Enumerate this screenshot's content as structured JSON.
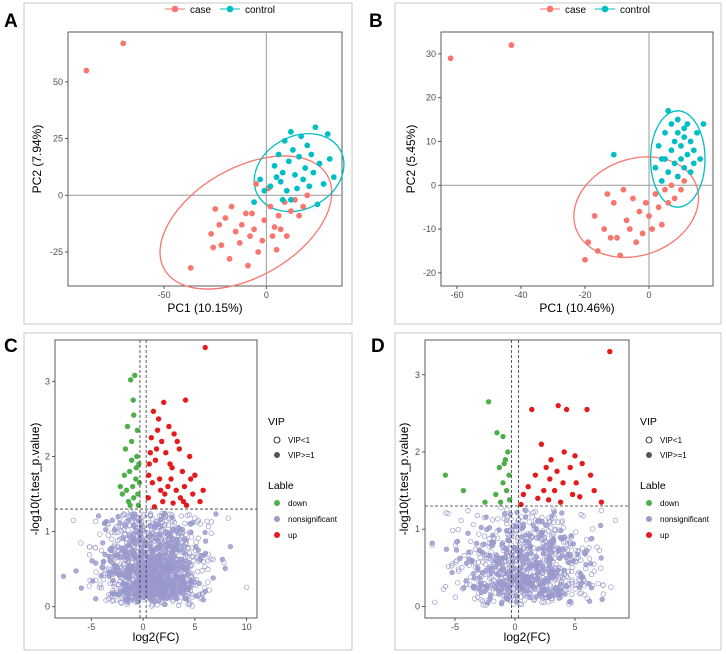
{
  "colors": {
    "case": "#F8766D",
    "control": "#00BFC4",
    "down": "#4DAF4A",
    "nonsignificant": "#9999CC",
    "up": "#E41A1C",
    "frame": "#c8c8c8",
    "grid_line": "#9a9a9a"
  },
  "chart_data": [
    {
      "panel": "A",
      "type": "scatter",
      "subtype": "pca",
      "xlabel": "PC1 (10.15%)",
      "ylabel": "PC2 (7.94%)",
      "xlim": [
        -97,
        37
      ],
      "ylim": [
        -40,
        72
      ],
      "xticks": [
        -50,
        0
      ],
      "yticks": [
        -25,
        0,
        25,
        50
      ],
      "reference_lines": {
        "x": 0,
        "y": 0
      },
      "legend": {
        "position": "top",
        "entries": [
          "case",
          "control"
        ]
      },
      "series": [
        {
          "name": "case",
          "points": [
            [
              -88,
              55
            ],
            [
              -70,
              67
            ],
            [
              -37,
              -32
            ],
            [
              -27,
              -17
            ],
            [
              -26,
              -23
            ],
            [
              -25,
              -6
            ],
            [
              -23,
              -13
            ],
            [
              -22,
              -22
            ],
            [
              -20,
              -10
            ],
            [
              -18,
              -28
            ],
            [
              -17,
              -5
            ],
            [
              -15,
              -16
            ],
            [
              -13,
              -21
            ],
            [
              -12,
              -13
            ],
            [
              -10,
              -8
            ],
            [
              -9,
              -31
            ],
            [
              -8,
              -18
            ],
            [
              -7,
              -8
            ],
            [
              -6,
              -15
            ],
            [
              -4,
              -25
            ],
            [
              -2,
              -20
            ],
            [
              -1,
              -11
            ],
            [
              2,
              -5
            ],
            [
              3,
              -18
            ],
            [
              4,
              -14
            ],
            [
              5,
              -24
            ],
            [
              6,
              -9
            ],
            [
              7,
              -15
            ],
            [
              9,
              -3
            ],
            [
              10,
              -18
            ],
            [
              12,
              -7
            ],
            [
              14,
              -2
            ],
            [
              16,
              -9
            ],
            [
              18,
              -5
            ],
            [
              20,
              0
            ],
            [
              -5,
              5
            ],
            [
              1,
              3
            ]
          ],
          "ellipse": {
            "cx": -10,
            "cy": -12,
            "rx": 46,
            "ry": 24,
            "angle_deg": 30
          }
        },
        {
          "name": "control",
          "points": [
            [
              -3,
              7
            ],
            [
              -1,
              2
            ],
            [
              2,
              4
            ],
            [
              4,
              13
            ],
            [
              5,
              8
            ],
            [
              6,
              18
            ],
            [
              7,
              6
            ],
            [
              8,
              10
            ],
            [
              9,
              24
            ],
            [
              10,
              2
            ],
            [
              11,
              15
            ],
            [
              12,
              -2
            ],
            [
              13,
              20
            ],
            [
              14,
              9
            ],
            [
              15,
              3
            ],
            [
              16,
              17
            ],
            [
              17,
              26
            ],
            [
              18,
              7
            ],
            [
              19,
              12
            ],
            [
              20,
              22
            ],
            [
              21,
              4
            ],
            [
              22,
              18
            ],
            [
              23,
              10
            ],
            [
              24,
              30
            ],
            [
              25,
              -4
            ],
            [
              26,
              14
            ],
            [
              28,
              5
            ],
            [
              30,
              27
            ],
            [
              31,
              16
            ],
            [
              33,
              8
            ],
            [
              8,
              -2
            ],
            [
              12,
              28
            ],
            [
              -6,
              -3
            ]
          ],
          "ellipse": {
            "cx": 16,
            "cy": 10,
            "rx": 23,
            "ry": 16,
            "angle_deg": 28
          }
        }
      ]
    },
    {
      "panel": "B",
      "type": "scatter",
      "subtype": "pca",
      "xlabel": "PC1 (10.46%)",
      "ylabel": "PC2 (5.45%)",
      "xlim": [
        -65,
        20
      ],
      "ylim": [
        -23,
        35
      ],
      "xticks": [
        -60,
        -40,
        -20,
        0
      ],
      "yticks": [
        -20,
        -10,
        0,
        10,
        20,
        30
      ],
      "reference_lines": {
        "x": 0,
        "y": 0
      },
      "legend": {
        "position": "top",
        "entries": [
          "case",
          "control"
        ]
      },
      "series": [
        {
          "name": "case",
          "points": [
            [
              -62,
              29
            ],
            [
              -43,
              32
            ],
            [
              -20,
              -17
            ],
            [
              -19,
              -13
            ],
            [
              -17,
              -7
            ],
            [
              -16,
              -15
            ],
            [
              -14,
              -10
            ],
            [
              -12,
              -12
            ],
            [
              -11,
              -4
            ],
            [
              -10,
              -12
            ],
            [
              -9,
              -16
            ],
            [
              -7,
              -8
            ],
            [
              -6,
              -10
            ],
            [
              -5,
              -3
            ],
            [
              -4,
              -13
            ],
            [
              -3,
              -6
            ],
            [
              -2,
              -11
            ],
            [
              -1,
              -4
            ],
            [
              0,
              -7
            ],
            [
              1,
              -10
            ],
            [
              2,
              -2
            ],
            [
              3,
              -5
            ],
            [
              4,
              -9
            ],
            [
              5,
              -1
            ],
            [
              6,
              -4
            ],
            [
              7,
              0
            ],
            [
              8,
              -3
            ],
            [
              9,
              2
            ],
            [
              10,
              -1
            ],
            [
              11,
              1
            ],
            [
              -13,
              -2
            ],
            [
              -8,
              -1
            ]
          ],
          "ellipse": {
            "cx": -4,
            "cy": -5,
            "rx": 20,
            "ry": 11,
            "angle_deg": 20
          }
        },
        {
          "name": "control",
          "points": [
            [
              -11,
              7
            ],
            [
              2,
              4
            ],
            [
              3,
              9
            ],
            [
              4,
              1
            ],
            [
              5,
              6
            ],
            [
              5,
              12
            ],
            [
              6,
              3
            ],
            [
              7,
              8
            ],
            [
              7,
              14
            ],
            [
              8,
              5
            ],
            [
              8,
              10
            ],
            [
              9,
              2
            ],
            [
              9,
              12
            ],
            [
              10,
              6
            ],
            [
              10,
              9
            ],
            [
              11,
              4
            ],
            [
              11,
              11
            ],
            [
              12,
              7
            ],
            [
              12,
              14
            ],
            [
              13,
              3
            ],
            [
              13,
              10
            ],
            [
              14,
              5
            ],
            [
              14,
              8
            ],
            [
              15,
              12
            ],
            [
              16,
              6
            ],
            [
              17,
              14
            ],
            [
              6,
              17
            ],
            [
              9,
              15
            ],
            [
              11,
              13
            ],
            [
              4,
              6
            ]
          ],
          "ellipse": {
            "cx": 9,
            "cy": 6,
            "rx": 8.5,
            "ry": 11,
            "angle_deg": 0
          }
        }
      ]
    },
    {
      "panel": "C",
      "type": "scatter",
      "subtype": "volcano",
      "xlabel": "log2(FC)",
      "ylabel": "-log10(t.test_p.value)",
      "xlim": [
        -8.5,
        11
      ],
      "ylim": [
        -0.15,
        3.55
      ],
      "xticks": [
        -5,
        0,
        5,
        10
      ],
      "yticks": [
        0,
        1,
        2,
        3
      ],
      "fc_threshold_lines": [
        -0.3,
        0.3
      ],
      "p_threshold_line": 1.3,
      "n_nonsignificant_points": 1400,
      "down_points": [
        [
          -1.2,
          3.02
        ],
        [
          -0.8,
          3.08
        ],
        [
          -1.5,
          2.4
        ],
        [
          -0.9,
          2.55
        ],
        [
          -1.1,
          2.2
        ],
        [
          -0.6,
          2.0
        ],
        [
          -1.7,
          2.1
        ],
        [
          -0.4,
          1.9
        ],
        [
          -1.3,
          1.8
        ],
        [
          -0.7,
          1.7
        ],
        [
          -1.0,
          1.6
        ],
        [
          -0.5,
          1.5
        ],
        [
          -1.6,
          1.55
        ],
        [
          -0.9,
          1.45
        ],
        [
          -1.4,
          1.4
        ],
        [
          -0.45,
          1.35
        ],
        [
          -2.0,
          1.5
        ],
        [
          -1.1,
          1.95
        ],
        [
          -0.55,
          2.35
        ],
        [
          -1.8,
          1.75
        ],
        [
          -0.35,
          1.65
        ],
        [
          -1.25,
          1.35
        ],
        [
          -0.65,
          1.85
        ],
        [
          -2.2,
          1.6
        ],
        [
          -0.95,
          2.75
        ]
      ],
      "up_points": [
        [
          6.0,
          3.45
        ],
        [
          4.1,
          2.75
        ],
        [
          2.0,
          2.72
        ],
        [
          1.0,
          2.6
        ],
        [
          1.5,
          2.5
        ],
        [
          2.5,
          2.4
        ],
        [
          3.0,
          2.3
        ],
        [
          0.8,
          2.25
        ],
        [
          1.8,
          2.2
        ],
        [
          3.5,
          2.1
        ],
        [
          2.2,
          2.05
        ],
        [
          4.5,
          2.0
        ],
        [
          1.2,
          1.95
        ],
        [
          0.6,
          1.9
        ],
        [
          2.8,
          1.85
        ],
        [
          3.8,
          1.8
        ],
        [
          5.0,
          1.75
        ],
        [
          1.6,
          1.7
        ],
        [
          0.9,
          1.65
        ],
        [
          2.4,
          1.6
        ],
        [
          3.2,
          1.55
        ],
        [
          4.8,
          1.5
        ],
        [
          0.5,
          1.45
        ],
        [
          1.9,
          1.4
        ],
        [
          2.9,
          1.38
        ],
        [
          4.2,
          1.35
        ],
        [
          5.5,
          1.4
        ],
        [
          1.1,
          1.33
        ],
        [
          3.6,
          1.45
        ],
        [
          2.6,
          1.9
        ],
        [
          1.4,
          2.35
        ],
        [
          0.7,
          2.05
        ],
        [
          4.0,
          1.6
        ],
        [
          5.8,
          1.55
        ],
        [
          2.1,
          1.5
        ],
        [
          3.3,
          2.2
        ],
        [
          0.55,
          1.75
        ],
        [
          1.7,
          1.55
        ],
        [
          2.7,
          1.7
        ],
        [
          3.9,
          1.4
        ],
        [
          4.6,
          1.7
        ],
        [
          1.3,
          2.1
        ]
      ],
      "legend": {
        "position": "right",
        "vip_title": "VIP",
        "vip_entries": [
          "VIP<1",
          "VIP>=1"
        ],
        "label_title": "Lable",
        "label_entries": [
          "down",
          "nonsignificant",
          "up"
        ]
      }
    },
    {
      "panel": "D",
      "type": "scatter",
      "subtype": "volcano",
      "xlabel": "log2(FC)",
      "ylabel": "-log10(t.test_p.value)",
      "xlim": [
        -7.5,
        9.5
      ],
      "ylim": [
        -0.15,
        3.45
      ],
      "xticks": [
        -5,
        0,
        5
      ],
      "yticks": [
        0,
        1,
        2,
        3
      ],
      "fc_threshold_lines": [
        -0.3,
        0.3
      ],
      "p_threshold_line": 1.3,
      "n_nonsignificant_points": 900,
      "down_points": [
        [
          -2.2,
          2.65
        ],
        [
          -1.5,
          2.25
        ],
        [
          -1.0,
          2.2
        ],
        [
          -0.6,
          2.0
        ],
        [
          -0.9,
          1.85
        ],
        [
          -1.3,
          1.8
        ],
        [
          -0.5,
          1.7
        ],
        [
          -1.0,
          1.6
        ],
        [
          -0.7,
          1.5
        ],
        [
          -1.6,
          1.45
        ],
        [
          -0.45,
          1.38
        ],
        [
          -5.8,
          1.7
        ],
        [
          -4.3,
          1.5
        ],
        [
          -2.5,
          1.35
        ],
        [
          -1.2,
          1.35
        ],
        [
          -0.8,
          1.9
        ]
      ],
      "up_points": [
        [
          7.9,
          3.3
        ],
        [
          1.4,
          2.55
        ],
        [
          3.6,
          2.6
        ],
        [
          4.3,
          2.55
        ],
        [
          6.0,
          2.55
        ],
        [
          2.2,
          2.1
        ],
        [
          4.1,
          2.0
        ],
        [
          5.0,
          1.95
        ],
        [
          3.0,
          1.9
        ],
        [
          5.6,
          1.85
        ],
        [
          2.6,
          1.8
        ],
        [
          3.5,
          1.75
        ],
        [
          4.6,
          1.8
        ],
        [
          1.7,
          1.7
        ],
        [
          6.3,
          1.7
        ],
        [
          2.9,
          1.65
        ],
        [
          4.0,
          1.6
        ],
        [
          5.1,
          1.6
        ],
        [
          1.1,
          1.55
        ],
        [
          2.4,
          1.5
        ],
        [
          3.3,
          1.5
        ],
        [
          6.6,
          1.5
        ],
        [
          4.8,
          1.45
        ],
        [
          0.7,
          1.45
        ],
        [
          1.9,
          1.4
        ],
        [
          2.8,
          1.38
        ],
        [
          5.4,
          1.42
        ],
        [
          7.2,
          1.35
        ],
        [
          3.8,
          1.35
        ],
        [
          0.5,
          1.32
        ]
      ],
      "legend": {
        "position": "right",
        "vip_title": "VIP",
        "vip_entries": [
          "VIP<1",
          "VIP>=1"
        ],
        "label_title": "Lable",
        "label_entries": [
          "down",
          "nonsignificant",
          "up"
        ]
      }
    }
  ]
}
